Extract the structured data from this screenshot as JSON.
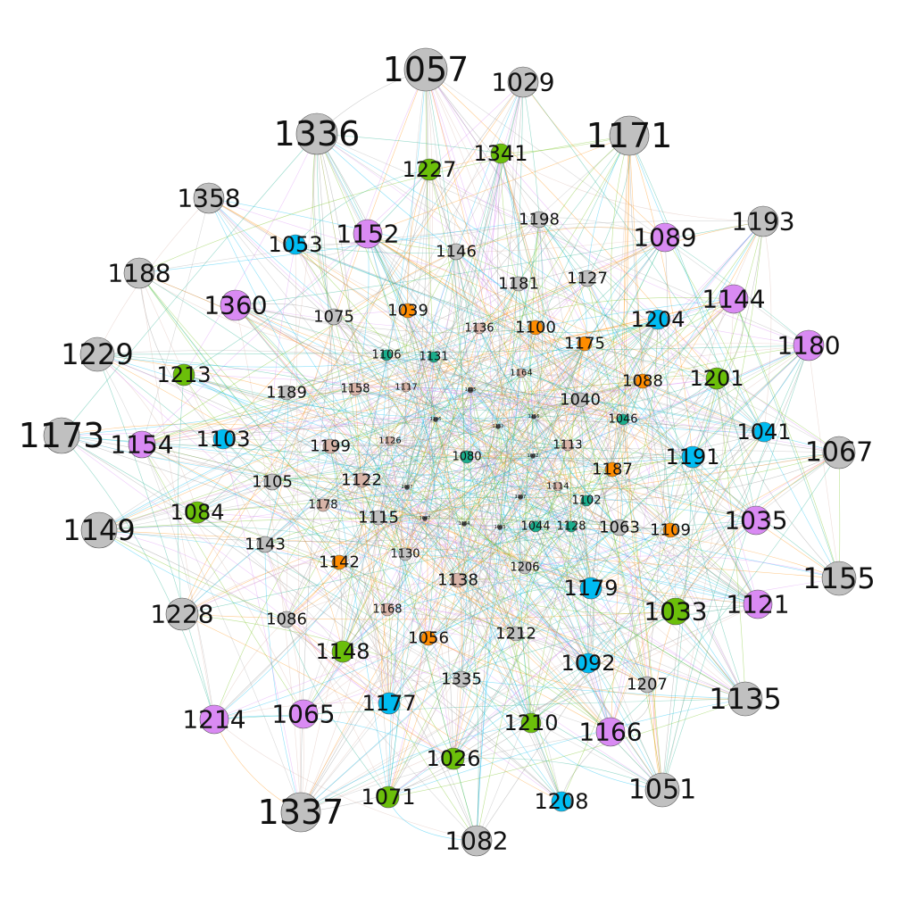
{
  "colors": {
    "gray": "#c0c0c0",
    "green": "#6bbf0a",
    "purple": "#d98af3",
    "blue": "#00bcf2",
    "orange": "#ff8c00",
    "teal": "#1aae8c",
    "tan": "#d8b4a8",
    "dark": "#444444"
  },
  "nodes": [
    {
      "id": "1057",
      "color": "gray",
      "size": 44
    },
    {
      "id": "1029",
      "color": "gray",
      "size": 30
    },
    {
      "id": "1336",
      "color": "gray",
      "size": 42
    },
    {
      "id": "1171",
      "color": "gray",
      "size": 40
    },
    {
      "id": "1227",
      "color": "green",
      "size": 24
    },
    {
      "id": "1341",
      "color": "green",
      "size": 22
    },
    {
      "id": "1358",
      "color": "gray",
      "size": 30
    },
    {
      "id": "1193",
      "color": "gray",
      "size": 30
    },
    {
      "id": "1053",
      "color": "blue",
      "size": 22
    },
    {
      "id": "1152",
      "color": "purple",
      "size": 28
    },
    {
      "id": "1198",
      "color": "gray",
      "size": 18
    },
    {
      "id": "1089",
      "color": "purple",
      "size": 28
    },
    {
      "id": "1146",
      "color": "gray",
      "size": 18
    },
    {
      "id": "1188",
      "color": "gray",
      "size": 30
    },
    {
      "id": "1127",
      "color": "gray",
      "size": 18
    },
    {
      "id": "1181",
      "color": "gray",
      "size": 16
    },
    {
      "id": "1144",
      "color": "purple",
      "size": 28
    },
    {
      "id": "1360",
      "color": "purple",
      "size": 30
    },
    {
      "id": "1075",
      "color": "gray",
      "size": 18
    },
    {
      "id": "1039",
      "color": "orange",
      "size": 16
    },
    {
      "id": "1204",
      "color": "blue",
      "size": 22
    },
    {
      "id": "1136",
      "color": "tan",
      "size": 12
    },
    {
      "id": "1100",
      "color": "orange",
      "size": 16
    },
    {
      "id": "1180",
      "color": "purple",
      "size": 30
    },
    {
      "id": "1229",
      "color": "gray",
      "size": 34
    },
    {
      "id": "1175",
      "color": "orange",
      "size": 16
    },
    {
      "id": "1106",
      "color": "teal",
      "size": 12
    },
    {
      "id": "1131",
      "color": "teal",
      "size": 12
    },
    {
      "id": "1213",
      "color": "green",
      "size": 24
    },
    {
      "id": "1201",
      "color": "green",
      "size": 24
    },
    {
      "id": "1164",
      "color": "tan",
      "size": 10
    },
    {
      "id": "1088",
      "color": "orange",
      "size": 16
    },
    {
      "id": "1117",
      "color": "tan",
      "size": 10
    },
    {
      "id": "1189",
      "color": "gray",
      "size": 16
    },
    {
      "id": "1158",
      "color": "tan",
      "size": 14
    },
    {
      "id": "1125",
      "color": "dark",
      "size": 6
    },
    {
      "id": "1040",
      "color": "gray",
      "size": 16
    },
    {
      "id": "1046",
      "color": "teal",
      "size": 12
    },
    {
      "id": "1173",
      "color": "gray",
      "size": 36
    },
    {
      "id": "1154",
      "color": "purple",
      "size": 26
    },
    {
      "id": "1103",
      "color": "blue",
      "size": 22
    },
    {
      "id": "1041",
      "color": "blue",
      "size": 22
    },
    {
      "id": "1067",
      "color": "gray",
      "size": 32
    },
    {
      "id": "1126",
      "color": "tan",
      "size": 10
    },
    {
      "id": "1199",
      "color": "tan",
      "size": 16
    },
    {
      "id": "1113",
      "color": "tan",
      "size": 12
    },
    {
      "id": "1191",
      "color": "blue",
      "size": 24
    },
    {
      "id": "1080",
      "color": "teal",
      "size": 14
    },
    {
      "id": "1187",
      "color": "orange",
      "size": 16
    },
    {
      "id": "1105",
      "color": "gray",
      "size": 18
    },
    {
      "id": "1122",
      "color": "tan",
      "size": 16
    },
    {
      "id": "1114",
      "color": "tan",
      "size": 10
    },
    {
      "id": "1102",
      "color": "teal",
      "size": 12
    },
    {
      "id": "1084",
      "color": "green",
      "size": 24
    },
    {
      "id": "1178",
      "color": "tan",
      "size": 14
    },
    {
      "id": "1035",
      "color": "purple",
      "size": 28
    },
    {
      "id": "1115",
      "color": "gray",
      "size": 16
    },
    {
      "id": "1149",
      "color": "gray",
      "size": 36
    },
    {
      "id": "1044",
      "color": "teal",
      "size": 12
    },
    {
      "id": "1128",
      "color": "teal",
      "size": 12
    },
    {
      "id": "1063",
      "color": "gray",
      "size": 18
    },
    {
      "id": "1109",
      "color": "orange",
      "size": 16
    },
    {
      "id": "1143",
      "color": "gray",
      "size": 18
    },
    {
      "id": "1142",
      "color": "orange",
      "size": 16
    },
    {
      "id": "1130",
      "color": "gray",
      "size": 14
    },
    {
      "id": "1206",
      "color": "gray",
      "size": 14
    },
    {
      "id": "1155",
      "color": "gray",
      "size": 34
    },
    {
      "id": "1138",
      "color": "tan",
      "size": 16
    },
    {
      "id": "1179",
      "color": "blue",
      "size": 24
    },
    {
      "id": "1121",
      "color": "purple",
      "size": 28
    },
    {
      "id": "1033",
      "color": "green",
      "size": 26
    },
    {
      "id": "1228",
      "color": "gray",
      "size": 32
    },
    {
      "id": "1168",
      "color": "tan",
      "size": 14
    },
    {
      "id": "1086",
      "color": "gray",
      "size": 18
    },
    {
      "id": "1056",
      "color": "orange",
      "size": 16
    },
    {
      "id": "1212",
      "color": "gray",
      "size": 16
    },
    {
      "id": "1148",
      "color": "green",
      "size": 24
    },
    {
      "id": "1092",
      "color": "blue",
      "size": 22
    },
    {
      "id": "1207",
      "color": "gray",
      "size": 18
    },
    {
      "id": "1335",
      "color": "gray",
      "size": 18
    },
    {
      "id": "1135",
      "color": "gray",
      "size": 34
    },
    {
      "id": "1177",
      "color": "blue",
      "size": 24
    },
    {
      "id": "1214",
      "color": "purple",
      "size": 28
    },
    {
      "id": "1065",
      "color": "purple",
      "size": 28
    },
    {
      "id": "1210",
      "color": "green",
      "size": 22
    },
    {
      "id": "1166",
      "color": "purple",
      "size": 28
    },
    {
      "id": "1026",
      "color": "green",
      "size": 24
    },
    {
      "id": "1051",
      "color": "gray",
      "size": 34
    },
    {
      "id": "1071",
      "color": "green",
      "size": 24
    },
    {
      "id": "1208",
      "color": "blue",
      "size": 22
    },
    {
      "id": "1337",
      "color": "gray",
      "size": 40
    },
    {
      "id": "1082",
      "color": "gray",
      "size": 30
    },
    {
      "id": "1007",
      "color": "dark",
      "size": 5
    },
    {
      "id": "1047",
      "color": "dark",
      "size": 5
    },
    {
      "id": "1184",
      "color": "dark",
      "size": 5
    },
    {
      "id": "1093",
      "color": "dark",
      "size": 5
    },
    {
      "id": "1032",
      "color": "dark",
      "size": 5
    },
    {
      "id": "1116",
      "color": "dark",
      "size": 5
    },
    {
      "id": "1107",
      "color": "dark",
      "size": 5
    },
    {
      "id": "1132",
      "color": "dark",
      "size": 5
    },
    {
      "id": "1196",
      "color": "dark",
      "size": 5
    }
  ]
}
